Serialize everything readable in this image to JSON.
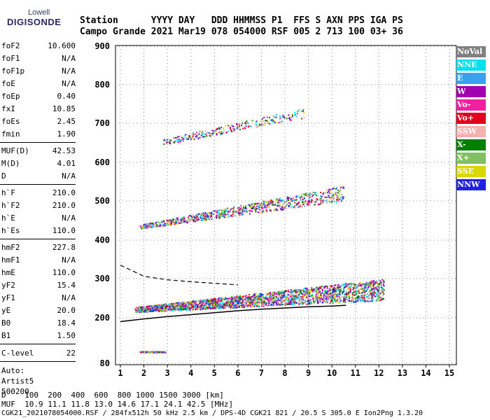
{
  "logo": {
    "line1": "Lowell",
    "line2": "DIGISONDE"
  },
  "header": {
    "line1": "Station      YYYY DAY   DDD HHMMSS P1  FFS S AXN PPS IGA PS",
    "line2": "Campo Grande 2021 Mar19 078 054000 RSF 005 2 713 100 03+ 36"
  },
  "params": {
    "group1": [
      {
        "name": "foF2",
        "value": "10.600"
      },
      {
        "name": "foF1",
        "value": "N/A"
      },
      {
        "name": "foF1p",
        "value": "N/A"
      },
      {
        "name": "foE",
        "value": "N/A"
      },
      {
        "name": "foEp",
        "value": "0.40"
      },
      {
        "name": "fxI",
        "value": "10.85"
      },
      {
        "name": "foEs",
        "value": "2.45"
      },
      {
        "name": "fmin",
        "value": "1.90"
      }
    ],
    "group2": [
      {
        "name": "MUF(D)",
        "value": "42.53"
      },
      {
        "name": "M(D)",
        "value": "4.01"
      },
      {
        "name": "D",
        "value": "N/A"
      }
    ],
    "group3": [
      {
        "name": "h`F",
        "value": "210.0"
      },
      {
        "name": "h`F2",
        "value": "210.0"
      },
      {
        "name": "h`E",
        "value": "N/A"
      },
      {
        "name": "h`Es",
        "value": "110.0"
      }
    ],
    "group4": [
      {
        "name": "hmF2",
        "value": "227.8"
      },
      {
        "name": "hmF1",
        "value": "N/A"
      },
      {
        "name": "hmE",
        "value": "110.0"
      },
      {
        "name": "yF2",
        "value": "15.4"
      },
      {
        "name": "yF1",
        "value": "N/A"
      },
      {
        "name": "yE",
        "value": "20.0"
      },
      {
        "name": "B0",
        "value": "18.4"
      },
      {
        "name": "B1",
        "value": "1.50"
      }
    ],
    "clevel": {
      "name": "C-level",
      "value": "22"
    },
    "auto": {
      "line1": "Auto:",
      "line2": "Artist5",
      "line3": "500200"
    }
  },
  "legend": [
    {
      "label": "NoVal",
      "bg": "#808080",
      "fg": "#ffffff"
    },
    {
      "label": "NNE",
      "bg": "#00e0f0",
      "fg": "#ffffff"
    },
    {
      "label": "E",
      "bg": "#3aa0f0",
      "fg": "#ffffff"
    },
    {
      "label": "W",
      "bg": "#a000b0",
      "fg": "#ffffff"
    },
    {
      "label": "Vo-",
      "bg": "#f020a0",
      "fg": "#ffffff"
    },
    {
      "label": "Vo+",
      "bg": "#e00020",
      "fg": "#ffffff"
    },
    {
      "label": "SSW",
      "bg": "#f5b0b0",
      "fg": "#ffffff"
    },
    {
      "label": "X-",
      "bg": "#008000",
      "fg": "#ffffff"
    },
    {
      "label": "X+",
      "bg": "#80c060",
      "fg": "#ffffff"
    },
    {
      "label": "SSE",
      "bg": "#d8d800",
      "fg": "#ffffff"
    },
    {
      "label": "NNW",
      "bg": "#2020e0",
      "fg": "#ffffff"
    }
  ],
  "chart_data": {
    "type": "scatter",
    "xlim": [
      1,
      15
    ],
    "ylim": [
      80,
      900
    ],
    "x_ticks": [
      "1",
      "2",
      "3",
      "4",
      "5",
      "6",
      "7",
      "8",
      "9",
      "10",
      "11",
      "12",
      "13",
      "14",
      "15"
    ],
    "y_ticks": [
      "80",
      "200",
      "300",
      "400",
      "500",
      "600",
      "700",
      "800",
      "900"
    ],
    "y_tick_values": [
      80,
      200,
      300,
      400,
      500,
      600,
      700,
      800,
      900
    ],
    "traces": [
      {
        "name": "F2 echo band",
        "x_range": [
          1.6,
          12.2
        ],
        "h_start": [
          215,
          228
        ],
        "h_end": [
          245,
          300
        ]
      },
      {
        "name": "Es 2-hop band",
        "x_range": [
          1.8,
          10.5
        ],
        "h_start": [
          430,
          440
        ],
        "h_end": [
          500,
          540
        ]
      },
      {
        "name": "Es 3-hop band",
        "x_range": [
          2.8,
          8.8
        ],
        "h_start": [
          645,
          660
        ],
        "h_end": [
          715,
          740
        ]
      },
      {
        "name": "Es layer",
        "x_range": [
          1.8,
          2.9
        ],
        "h_start": [
          110,
          112
        ],
        "h_end": [
          110,
          112
        ]
      }
    ],
    "profile_curve": {
      "x": [
        1,
        2,
        3,
        4,
        5,
        6,
        7,
        8,
        9,
        10,
        10.6
      ],
      "y": [
        190,
        197,
        203,
        208,
        213,
        218,
        222,
        225,
        228,
        230,
        232
      ]
    },
    "dashed_curve": {
      "x": [
        1,
        2,
        3,
        4,
        5,
        6
      ],
      "y": [
        335,
        306,
        297,
        292,
        288,
        284
      ]
    }
  },
  "bottom": {
    "line1": "D    100  200  400  600  800 1000 1500 3000 [km]",
    "line2": "MUF  10.9 11.1 11.8 13.0 14.6 17.1 24.1 42.5 [MHz]",
    "line3": "CGK21_2021078054000.RSF / 284fx512h 50 kHz 2.5 km / DPS-4D CGK21 821 / 20.5 S 305.0 E Ion2Png 1.3.20"
  }
}
